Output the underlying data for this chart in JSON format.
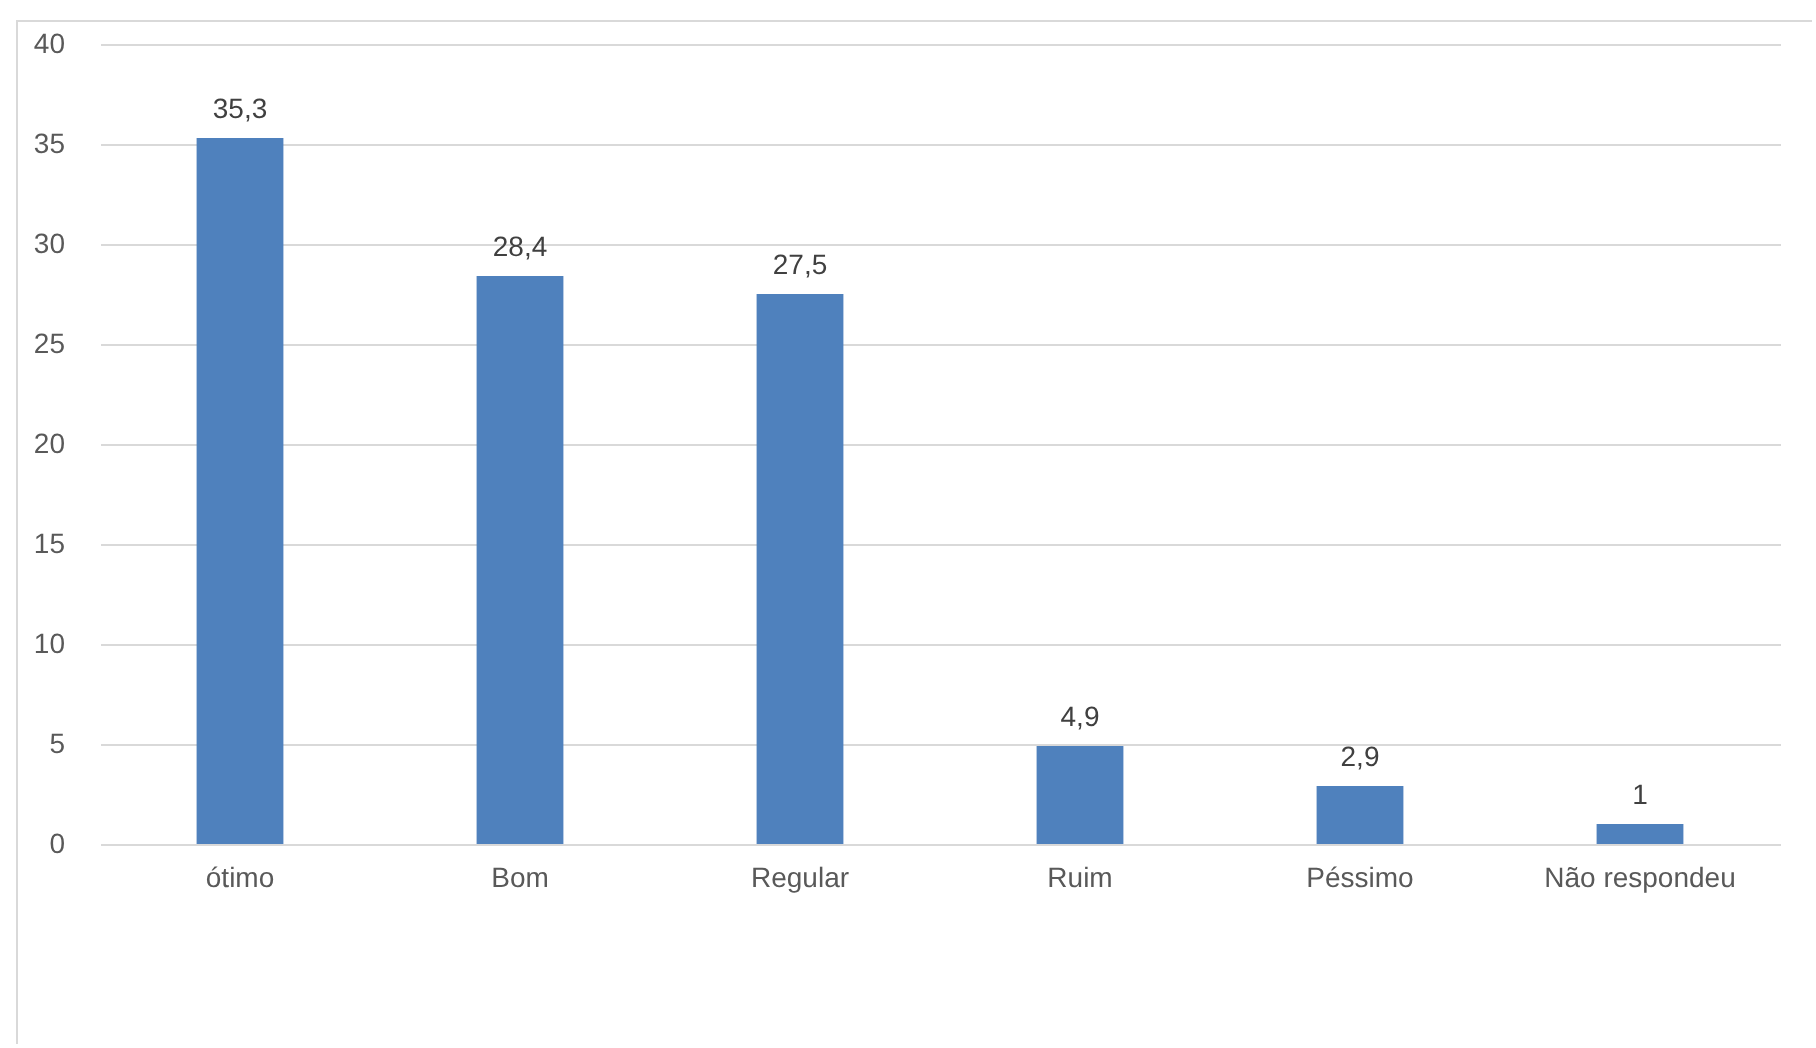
{
  "chart_data": {
    "type": "bar",
    "categories": [
      "ótimo",
      "Bom",
      "Regular",
      "Ruim",
      "Péssimo",
      "Não respondeu"
    ],
    "values": [
      35.3,
      28.4,
      27.5,
      4.9,
      2.9,
      1
    ],
    "value_labels": [
      "35,3",
      "28,4",
      "27,5",
      "4,9",
      "2,9",
      "1"
    ],
    "color": "#4f81bd",
    "ylim": [
      0,
      40
    ],
    "yticks": [
      0,
      5,
      10,
      15,
      20,
      25,
      30,
      35,
      40
    ],
    "grid": "y"
  }
}
